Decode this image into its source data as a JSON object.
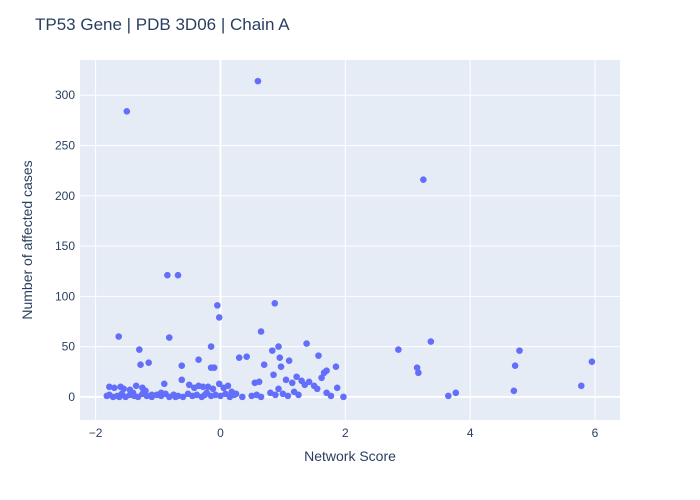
{
  "chart_data": {
    "type": "scatter",
    "title": "TP53 Gene | PDB 3D06 | Chain A",
    "xlabel": "Network Score",
    "ylabel": "Number of affected cases",
    "xlim": [
      -2.25,
      6.4
    ],
    "ylim": [
      -23,
      335
    ],
    "x_ticks": [
      -2,
      0,
      2,
      4,
      6
    ],
    "x_tick_labels": [
      "−2",
      "0",
      "2",
      "4",
      "6"
    ],
    "y_ticks": [
      0,
      50,
      100,
      150,
      200,
      250,
      300
    ],
    "y_tick_labels": [
      "0",
      "50",
      "100",
      "150",
      "200",
      "250",
      "300"
    ],
    "grid": true,
    "legend": "none",
    "colors": {
      "plot_bg": "#E5ECF6",
      "grid": "#ffffff",
      "marker": "#636EFA",
      "text": "#2a3f5f"
    },
    "points": [
      [
        -1.5,
        284
      ],
      [
        0.6,
        314
      ],
      [
        3.25,
        216
      ],
      [
        -0.85,
        121
      ],
      [
        -0.68,
        121
      ],
      [
        -0.05,
        91
      ],
      [
        0.87,
        93
      ],
      [
        -0.02,
        79
      ],
      [
        -1.63,
        60
      ],
      [
        -0.82,
        59
      ],
      [
        0.65,
        65
      ],
      [
        -1.3,
        47
      ],
      [
        -0.15,
        50
      ],
      [
        0.93,
        50
      ],
      [
        1.38,
        53
      ],
      [
        -0.35,
        37
      ],
      [
        -0.15,
        29
      ],
      [
        -0.1,
        29
      ],
      [
        -1.15,
        34
      ],
      [
        -0.62,
        31
      ],
      [
        -1.28,
        32
      ],
      [
        0.3,
        39
      ],
      [
        0.42,
        40
      ],
      [
        0.7,
        32
      ],
      [
        0.83,
        46
      ],
      [
        0.95,
        39
      ],
      [
        0.97,
        30
      ],
      [
        1.1,
        36
      ],
      [
        1.57,
        41
      ],
      [
        1.66,
        24
      ],
      [
        1.7,
        26
      ],
      [
        1.85,
        30
      ],
      [
        2.85,
        47
      ],
      [
        3.15,
        29
      ],
      [
        3.17,
        24
      ],
      [
        3.37,
        55
      ],
      [
        4.72,
        31
      ],
      [
        4.79,
        46
      ],
      [
        5.95,
        35
      ],
      [
        5.78,
        11
      ],
      [
        3.65,
        1
      ],
      [
        3.77,
        4
      ],
      [
        4.7,
        6
      ],
      [
        -1.78,
        10
      ],
      [
        -1.7,
        9
      ],
      [
        -1.6,
        10
      ],
      [
        -1.55,
        8
      ],
      [
        -1.45,
        7
      ],
      [
        -1.35,
        11
      ],
      [
        -1.25,
        9
      ],
      [
        -1.2,
        6
      ],
      [
        -1.1,
        2
      ],
      [
        -0.95,
        4
      ],
      [
        -0.9,
        13
      ],
      [
        -0.75,
        2
      ],
      [
        -0.62,
        17
      ],
      [
        -0.5,
        12
      ],
      [
        -0.42,
        9
      ],
      [
        -0.35,
        11
      ],
      [
        -0.28,
        10
      ],
      [
        -0.2,
        10
      ],
      [
        -0.12,
        8
      ],
      [
        -0.02,
        13
      ],
      [
        0.05,
        9
      ],
      [
        0.12,
        11
      ],
      [
        0.18,
        5
      ],
      [
        0.25,
        3
      ],
      [
        0.55,
        14
      ],
      [
        0.62,
        15
      ],
      [
        0.8,
        4
      ],
      [
        0.85,
        22
      ],
      [
        0.93,
        8
      ],
      [
        1.05,
        17
      ],
      [
        1.15,
        14
      ],
      [
        1.22,
        20
      ],
      [
        1.3,
        16
      ],
      [
        1.35,
        12
      ],
      [
        1.42,
        15
      ],
      [
        1.5,
        11
      ],
      [
        1.55,
        8
      ],
      [
        1.62,
        19
      ],
      [
        1.7,
        4
      ],
      [
        1.77,
        1
      ],
      [
        1.87,
        9
      ],
      [
        1.97,
        0
      ],
      [
        -1.82,
        1
      ],
      [
        -1.78,
        2
      ],
      [
        -1.72,
        0
      ],
      [
        -1.65,
        1
      ],
      [
        -1.58,
        3
      ],
      [
        -1.52,
        0
      ],
      [
        -1.45,
        2
      ],
      [
        -1.38,
        1
      ],
      [
        -1.32,
        0
      ],
      [
        -1.25,
        3
      ],
      [
        -1.18,
        1
      ],
      [
        -1.1,
        0
      ],
      [
        -1.02,
        2
      ],
      [
        -0.95,
        1
      ],
      [
        -0.88,
        3
      ],
      [
        -0.82,
        0
      ],
      [
        -0.75,
        2
      ],
      [
        -0.68,
        1
      ],
      [
        -0.6,
        0
      ],
      [
        -0.52,
        3
      ],
      [
        -0.45,
        1
      ],
      [
        -0.38,
        2
      ],
      [
        -0.3,
        0
      ],
      [
        -0.22,
        4
      ],
      [
        -0.15,
        1
      ],
      [
        -0.08,
        2
      ],
      [
        0.0,
        1
      ],
      [
        0.08,
        3
      ],
      [
        0.15,
        0
      ],
      [
        0.22,
        2
      ],
      [
        0.5,
        1
      ],
      [
        0.58,
        2
      ],
      [
        0.65,
        0
      ],
      [
        0.88,
        2
      ],
      [
        1.0,
        3
      ],
      [
        1.08,
        1
      ],
      [
        1.18,
        5
      ],
      [
        1.25,
        2
      ],
      [
        -1.62,
        0
      ],
      [
        -1.4,
        4
      ],
      [
        -0.72,
        0
      ],
      [
        -0.25,
        2
      ],
      [
        0.35,
        0
      ]
    ]
  }
}
